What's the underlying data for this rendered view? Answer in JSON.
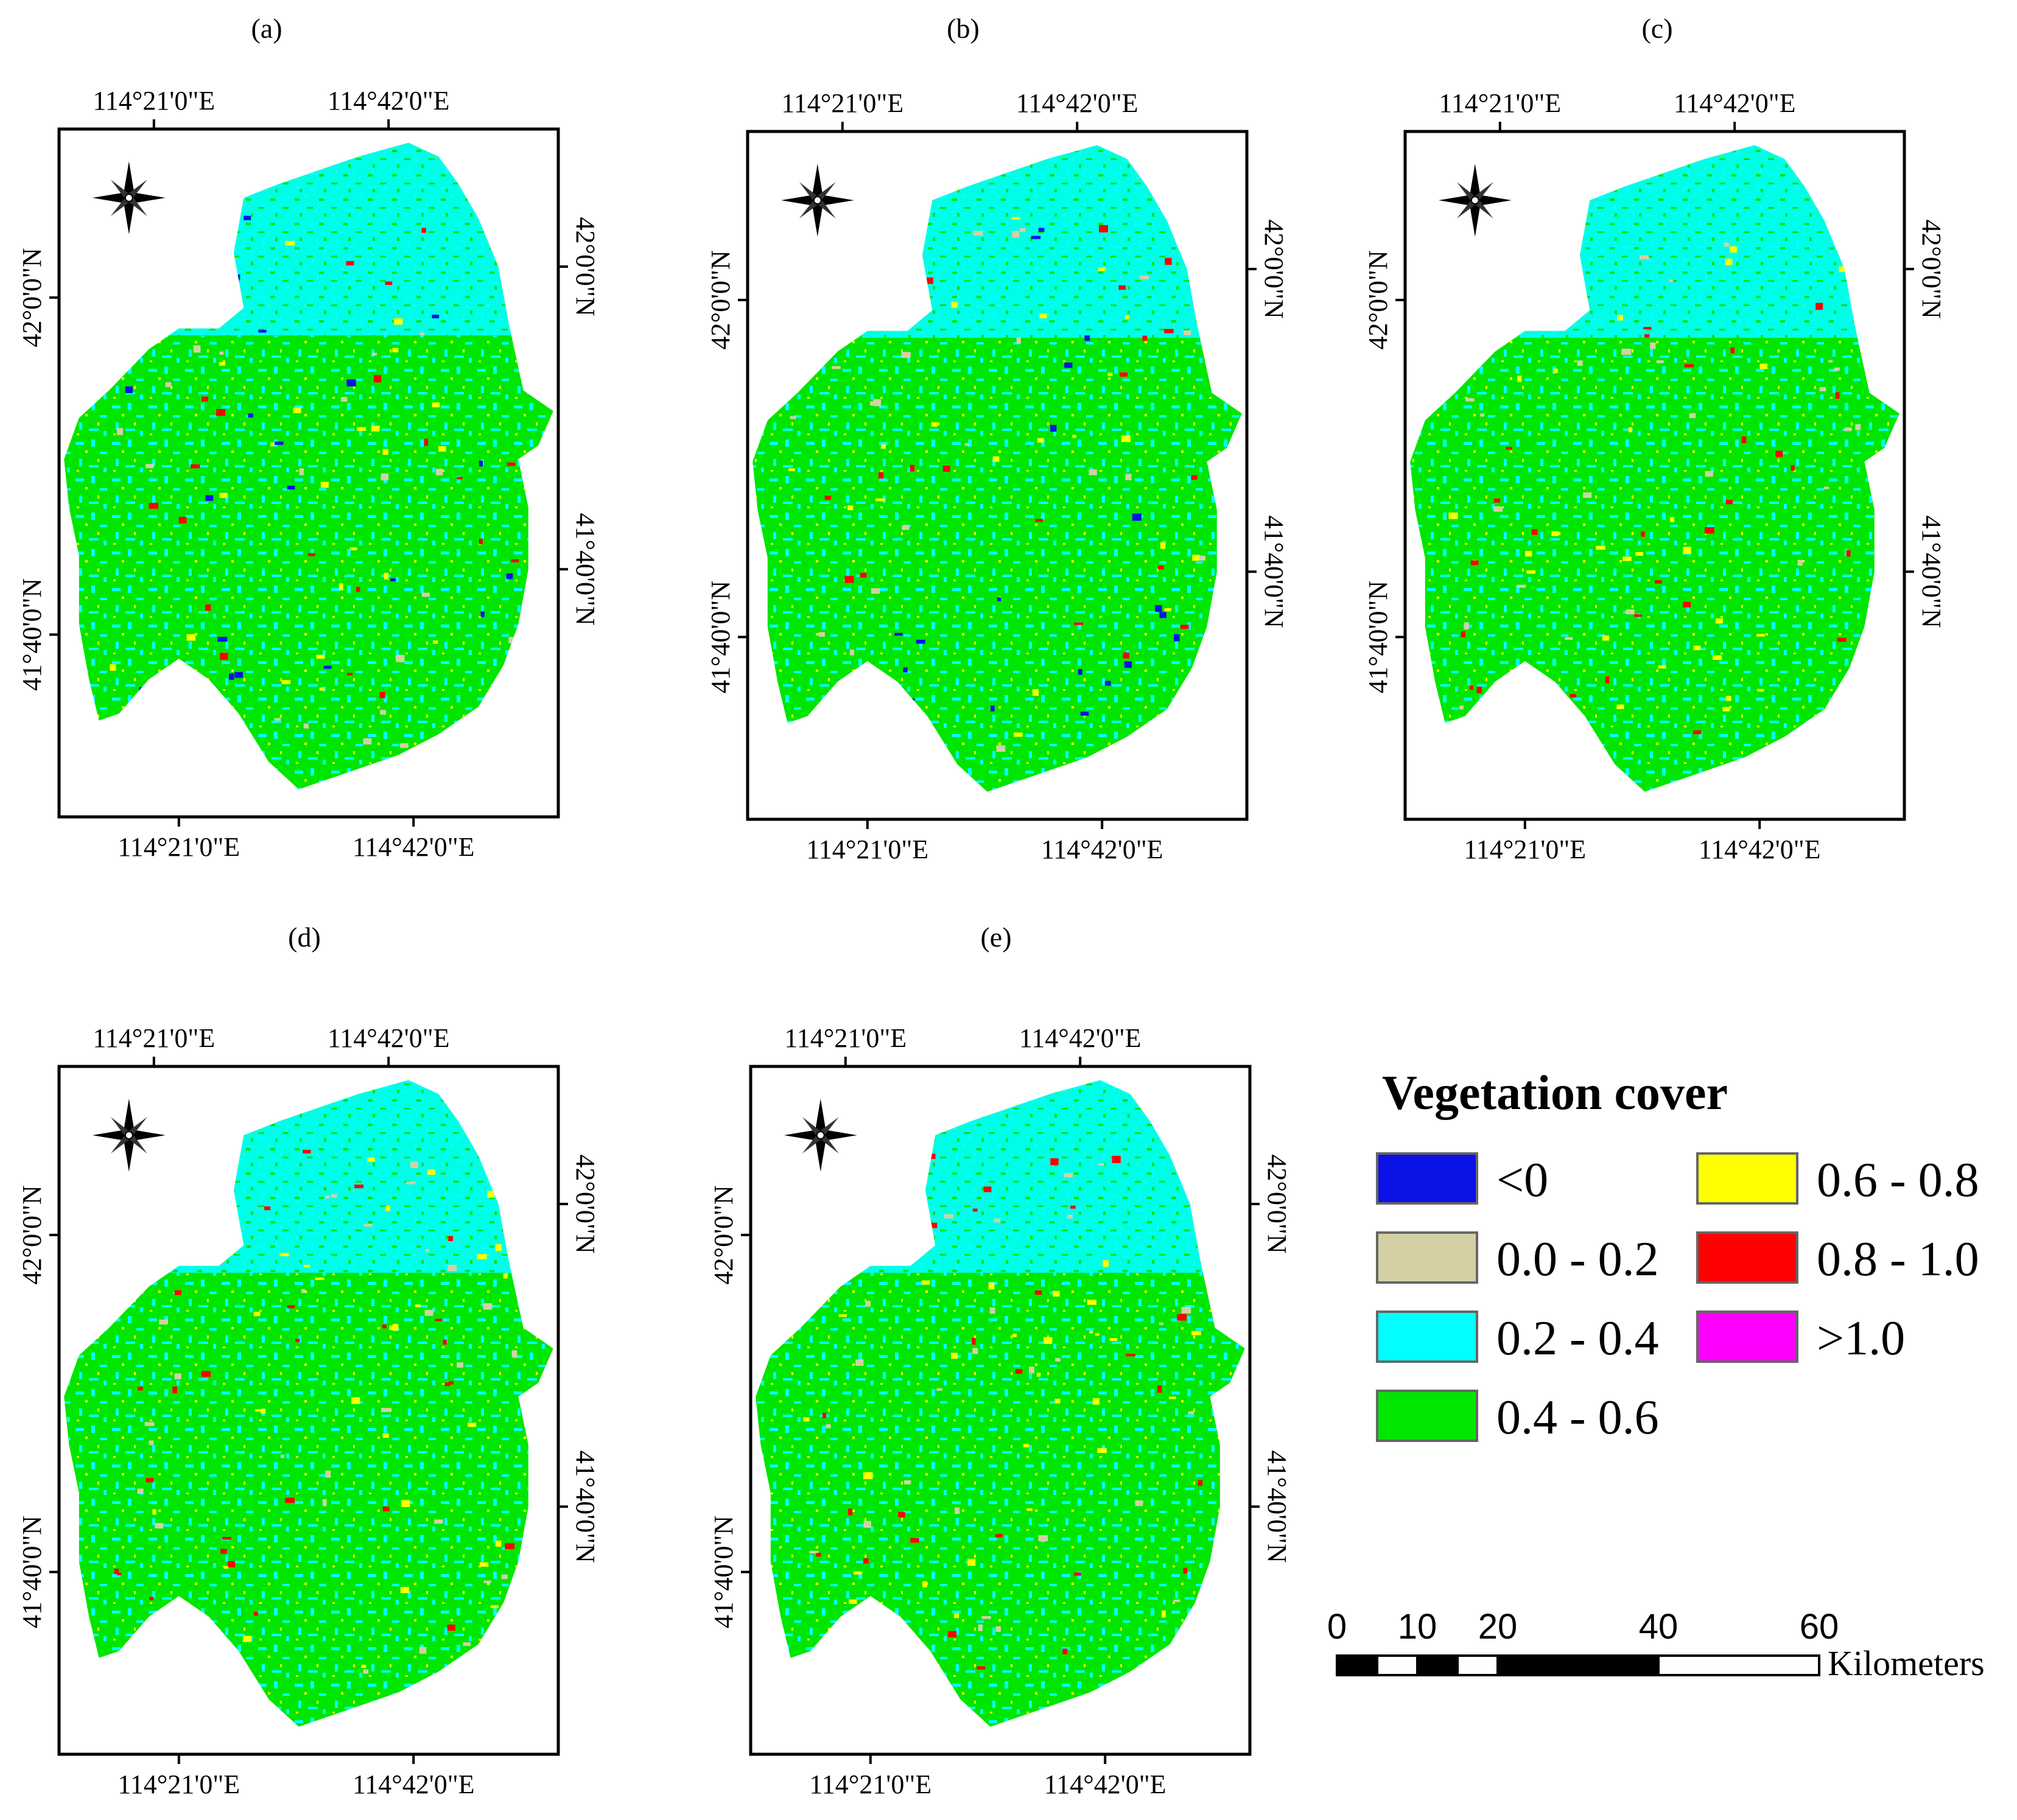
{
  "panels": [
    {
      "label": "(a)"
    },
    {
      "label": "(b)"
    },
    {
      "label": "(c)"
    },
    {
      "label": "(d)"
    },
    {
      "label": "(e)"
    }
  ],
  "axes": {
    "lon_ticks": [
      "114°21'0\"E",
      "114°42'0\"E"
    ],
    "lat_ticks": [
      "42°0'0\"N",
      "41°40'0\"N"
    ]
  },
  "legend": {
    "title": "Vegetation cover",
    "classes": [
      {
        "label": "<0",
        "color": "#0a12e6"
      },
      {
        "label": "0.0 - 0.2",
        "color": "#d4d0a4"
      },
      {
        "label": "0.2 - 0.4",
        "color": "#00ffff"
      },
      {
        "label": "0.4 - 0.6",
        "color": "#00e600"
      },
      {
        "label": "0.6 - 0.8",
        "color": "#ffff00"
      },
      {
        "label": "0.8 - 1.0",
        "color": "#ff0000"
      },
      {
        "label": ">1.0",
        "color": "#ff00ff"
      }
    ]
  },
  "scale_bar": {
    "ticks": [
      "0",
      "10",
      "20",
      "40",
      "60"
    ],
    "unit": "Kilometers"
  },
  "icons": {
    "north_arrow": "compass-rose-icon"
  }
}
